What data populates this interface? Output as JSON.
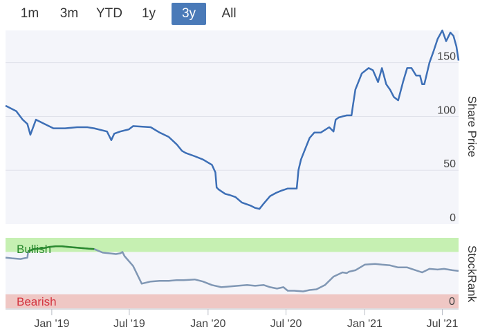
{
  "range_tabs": [
    {
      "label": "1m",
      "active": false
    },
    {
      "label": "3m",
      "active": false
    },
    {
      "label": "YTD",
      "active": false
    },
    {
      "label": "1y",
      "active": false
    },
    {
      "label": "3y",
      "active": true
    },
    {
      "label": "All",
      "active": false
    }
  ],
  "colors": {
    "accent": "#4a7ab8",
    "price_line": "#3d6fb6",
    "rank_line": "#8097b4",
    "bullish_band": "#c6f0b2",
    "bearish_band": "#efc7c4",
    "bullish_line": "#2a8a2e",
    "bearish_line": "#d9262b",
    "bullish_text": "#2a8a2e",
    "bearish_text": "#d3343f"
  },
  "chart_data": [
    {
      "type": "line",
      "ylabel": "Share Price",
      "ylim": [
        0,
        180
      ],
      "yticks": [
        0,
        50,
        100,
        150
      ],
      "xlim": [
        "2018-09-15",
        "2021-08-08"
      ],
      "xticks": [
        {
          "date": "2019-01-01",
          "label": "Jan '19"
        },
        {
          "date": "2019-07-01",
          "label": "Jul '19"
        },
        {
          "date": "2020-01-01",
          "label": "Jan '20"
        },
        {
          "date": "2020-07-01",
          "label": "Jul '20"
        },
        {
          "date": "2021-01-01",
          "label": "Jan '21"
        },
        {
          "date": "2021-07-01",
          "label": "Jul '21"
        }
      ],
      "grid": true,
      "series": [
        {
          "x": [
            "2018-09-15",
            "2018-10-10",
            "2018-10-25",
            "2018-11-05",
            "2018-11-12",
            "2018-11-25",
            "2018-12-15",
            "2019-01-05",
            "2019-02-01",
            "2019-03-01",
            "2019-03-25",
            "2019-04-10",
            "2019-05-10",
            "2019-05-20",
            "2019-05-27",
            "2019-06-10",
            "2019-06-30",
            "2019-07-10",
            "2019-08-20",
            "2019-09-10",
            "2019-10-01",
            "2019-10-20",
            "2019-11-01",
            "2019-11-10",
            "2019-12-01",
            "2019-12-20",
            "2020-01-10",
            "2020-01-18",
            "2020-01-21",
            "2020-01-26",
            "2020-02-10",
            "2020-02-20",
            "2020-03-05",
            "2020-03-20",
            "2020-04-10",
            "2020-04-20",
            "2020-04-30",
            "2020-05-10",
            "2020-05-25",
            "2020-06-08",
            "2020-06-20",
            "2020-07-05",
            "2020-07-20",
            "2020-07-26",
            "2020-07-30",
            "2020-08-05",
            "2020-08-15",
            "2020-08-25",
            "2020-09-05",
            "2020-09-20",
            "2020-10-10",
            "2020-10-20",
            "2020-10-25",
            "2020-11-01",
            "2020-11-10",
            "2020-11-20",
            "2020-12-01",
            "2020-12-05",
            "2020-12-10",
            "2020-12-25",
            "2021-01-10",
            "2021-01-20",
            "2021-02-01",
            "2021-02-10",
            "2021-02-20",
            "2021-03-01",
            "2021-03-10",
            "2021-03-20",
            "2021-04-01",
            "2021-04-10",
            "2021-04-20",
            "2021-05-01",
            "2021-05-10",
            "2021-05-15",
            "2021-05-20",
            "2021-06-01",
            "2021-06-10",
            "2021-06-20",
            "2021-07-01",
            "2021-07-10",
            "2021-07-20",
            "2021-07-27",
            "2021-08-03",
            "2021-08-08"
          ],
          "y": [
            110,
            105,
            97,
            93,
            83,
            97,
            93,
            89,
            89,
            90,
            90,
            89,
            86,
            78,
            84,
            86,
            88,
            91,
            90,
            85,
            81,
            74,
            68,
            66,
            63,
            60,
            55,
            48,
            34,
            32,
            28,
            27,
            25,
            20,
            17,
            15,
            14,
            19,
            26,
            29,
            31,
            33,
            33,
            33,
            50,
            60,
            70,
            80,
            85,
            85,
            90,
            86,
            97,
            99,
            100,
            101,
            101,
            112,
            125,
            140,
            145,
            143,
            132,
            145,
            130,
            125,
            118,
            115,
            133,
            145,
            145,
            138,
            138,
            130,
            130,
            150,
            160,
            172,
            180,
            170,
            178,
            175,
            165,
            152
          ]
        }
      ]
    },
    {
      "type": "line",
      "ylabel": "StockRank",
      "ylim": [
        0,
        100
      ],
      "yticks": [
        0
      ],
      "bands": [
        {
          "label": "Bullish",
          "from": 80,
          "to": 100
        },
        {
          "label": "Bearish",
          "from": 0,
          "to": 20
        }
      ],
      "series": [
        {
          "x": [
            "2018-09-15",
            "2018-09-30",
            "2018-10-20",
            "2018-11-05",
            "2018-11-07",
            "2018-11-20",
            "2018-12-10",
            "2018-12-25",
            "2019-01-10",
            "2019-01-25",
            "2019-02-10",
            "2019-03-01",
            "2019-03-20",
            "2019-04-10",
            "2019-04-30",
            "2019-05-15",
            "2019-05-31",
            "2019-06-10",
            "2019-06-15",
            "2019-06-20",
            "2019-07-10",
            "2019-07-30",
            "2019-08-20",
            "2019-09-10",
            "2019-10-01",
            "2019-10-20",
            "2019-11-05",
            "2019-12-01",
            "2019-12-20",
            "2020-01-10",
            "2020-02-01",
            "2020-02-20",
            "2020-03-10",
            "2020-04-01",
            "2020-04-20",
            "2020-05-10",
            "2020-05-25",
            "2020-06-10",
            "2020-06-25",
            "2020-07-05",
            "2020-07-20",
            "2020-08-10",
            "2020-08-25",
            "2020-09-10",
            "2020-09-30",
            "2020-10-20",
            "2020-11-10",
            "2020-11-20",
            "2020-11-25",
            "2020-12-10",
            "2021-01-01",
            "2021-01-25",
            "2021-02-10",
            "2021-03-01",
            "2021-03-20",
            "2021-04-10",
            "2021-04-25",
            "2021-05-10",
            "2021-05-15",
            "2021-06-01",
            "2021-06-20",
            "2021-07-05",
            "2021-07-25",
            "2021-08-08"
          ],
          "y": [
            72,
            71,
            70,
            72,
            81,
            84,
            85,
            87,
            88,
            88,
            87,
            86,
            85,
            84,
            79,
            78,
            77,
            78,
            80,
            74,
            60,
            35,
            38,
            39,
            39,
            40,
            40,
            41,
            38,
            33,
            30,
            31,
            32,
            33,
            32,
            33,
            30,
            28,
            30,
            25,
            25,
            24,
            26,
            27,
            33,
            45,
            51,
            50,
            52,
            54,
            62,
            63,
            62,
            61,
            58,
            58,
            55,
            52,
            51,
            56,
            55,
            56,
            54,
            53
          ]
        }
      ]
    }
  ]
}
